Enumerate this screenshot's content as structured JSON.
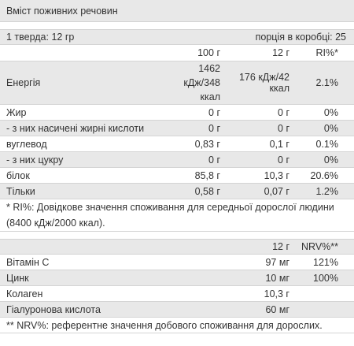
{
  "title": "Вміст поживних речовин",
  "serving": {
    "portion": "1 тверда: 12 гр",
    "per_box": "порція в коробці: 25"
  },
  "nutrition": {
    "header": [
      "100 г",
      "12 г",
      "RI%*"
    ],
    "rows": [
      [
        "Енергія",
        "1462 кДж/348 ккал",
        "176 кДж/42 ккал",
        "2.1%"
      ],
      [
        "Жир",
        "0 г",
        "0 г",
        "0%"
      ],
      [
        "- з них насичені жирні кислоти",
        "0 г",
        "0 г",
        "0%"
      ],
      [
        "вуглевод",
        "0,83 г",
        "0,1 г",
        "0.1%"
      ],
      [
        "- з них цукру",
        "0 г",
        "0 г",
        "0%"
      ],
      [
        "білок",
        "85,8 г",
        "10,3 г",
        "20.6%"
      ],
      [
        "Тільки",
        "0,58 г",
        "0,07 г",
        "1.2%"
      ]
    ],
    "footnote": "* RI%: Довідкове значення споживання для середньої дорослої людини (8400 кДж/2000 ккал)."
  },
  "vitamins": {
    "header": [
      "12 г",
      "NRV%**"
    ],
    "rows": [
      [
        "Вітамін C",
        "97 мг",
        "121%"
      ],
      [
        "Цинк",
        "10 мг",
        "100%"
      ],
      [
        "Колаген",
        "10,3 г"
      ],
      [
        "Гіалуронова кислота",
        "60 мг"
      ]
    ],
    "footnote": "** NRV%: референтне значення добового споживання для дорослих."
  }
}
